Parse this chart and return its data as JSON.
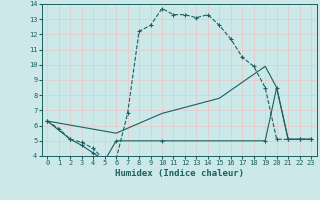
{
  "xlabel": "Humidex (Indice chaleur)",
  "xlim": [
    -0.5,
    23.5
  ],
  "ylim": [
    4,
    14
  ],
  "xticks": [
    0,
    1,
    2,
    3,
    4,
    5,
    6,
    7,
    8,
    9,
    10,
    11,
    12,
    13,
    14,
    15,
    16,
    17,
    18,
    19,
    20,
    21,
    22,
    23
  ],
  "yticks": [
    4,
    5,
    6,
    7,
    8,
    9,
    10,
    11,
    12,
    13,
    14
  ],
  "background_color": "#cce8e8",
  "line_color": "#1a6060",
  "grid_color": "#e8c8c8",
  "line1_x": [
    0,
    1,
    2,
    3,
    4,
    5,
    6,
    7,
    8,
    9,
    10,
    11,
    12,
    13,
    14,
    15,
    16,
    17,
    18,
    19,
    20,
    21,
    22,
    23
  ],
  "line1_y": [
    6.3,
    5.8,
    5.1,
    4.9,
    4.5,
    3.7,
    3.8,
    6.8,
    12.2,
    12.6,
    13.7,
    13.3,
    13.3,
    13.1,
    13.3,
    12.6,
    11.7,
    10.5,
    9.9,
    8.5,
    5.1,
    5.1,
    5.1,
    5.1
  ],
  "line2_x": [
    0,
    2,
    3,
    4,
    5,
    6,
    10,
    19,
    20,
    21,
    22,
    23
  ],
  "line2_y": [
    6.3,
    5.1,
    4.7,
    4.2,
    3.7,
    5.0,
    5.0,
    5.0,
    8.5,
    5.1,
    5.1,
    5.1
  ],
  "line3_x": [
    0,
    6,
    10,
    15,
    19,
    20,
    21,
    22,
    23
  ],
  "line3_y": [
    6.3,
    5.5,
    6.8,
    7.8,
    9.9,
    8.5,
    5.1,
    5.1,
    5.1
  ]
}
